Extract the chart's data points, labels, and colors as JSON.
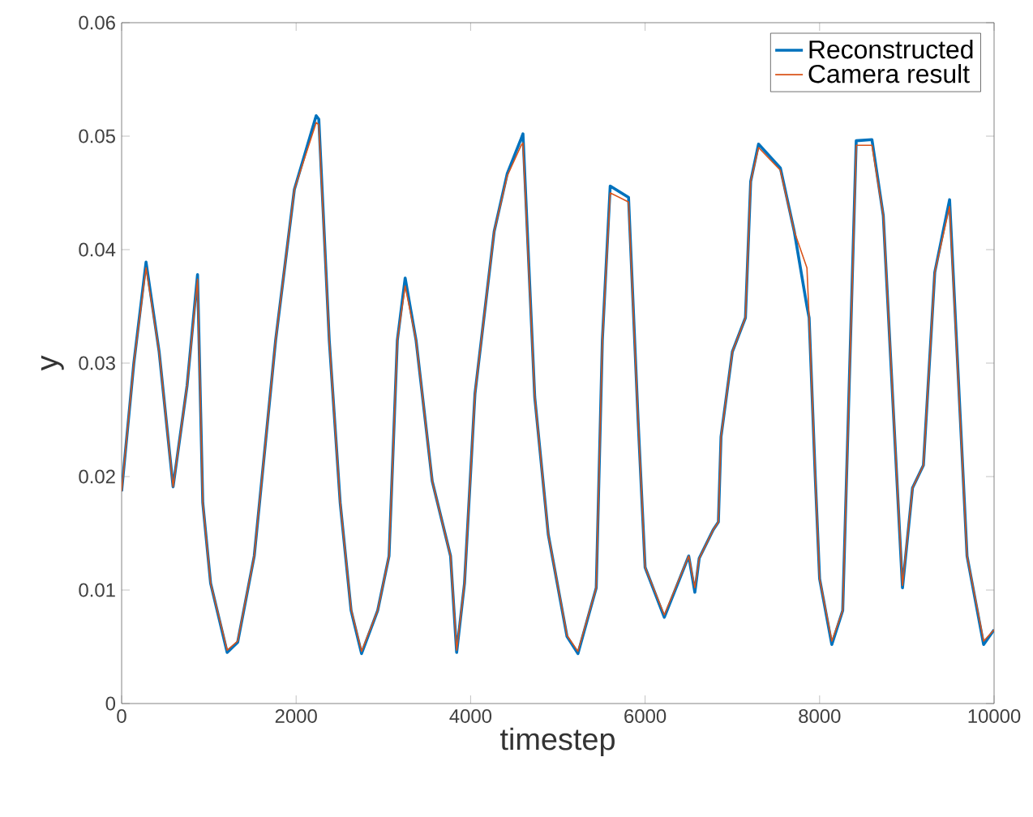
{
  "chart_data": {
    "type": "line",
    "xlabel": "timestep",
    "ylabel": "y",
    "xlim": [
      0,
      10000
    ],
    "ylim": [
      0,
      0.06
    ],
    "xticks": [
      0,
      2000,
      4000,
      6000,
      8000,
      10000
    ],
    "yticks": [
      0,
      0.01,
      0.02,
      0.03,
      0.04,
      0.05,
      0.06
    ],
    "legend": "top right",
    "grid": false,
    "marker": "none",
    "line_style": "solid",
    "x": [
      0,
      140,
      280,
      430,
      590,
      750,
      870,
      930,
      1020,
      1210,
      1330,
      1520,
      1765,
      1980,
      2230,
      2260,
      2380,
      2505,
      2630,
      2750,
      2935,
      3065,
      3160,
      3250,
      3375,
      3560,
      3770,
      3840,
      3930,
      4050,
      4270,
      4420,
      4580,
      4600,
      4735,
      4890,
      5105,
      5230,
      5440,
      5510,
      5600,
      5810,
      5920,
      6000,
      6220,
      6500,
      6570,
      6620,
      6780,
      6840,
      6870,
      7000,
      7150,
      7210,
      7300,
      7550,
      7710,
      7855,
      7880,
      7950,
      8000,
      8140,
      8265,
      8420,
      8600,
      8730,
      8950,
      9065,
      9190,
      9320,
      9490,
      9690,
      9880,
      10000
    ],
    "series": [
      {
        "name": "Reconstructed",
        "color": "#0072bd",
        "values": [
          0.0187,
          0.03,
          0.0389,
          0.031,
          0.0191,
          0.028,
          0.0378,
          0.0177,
          0.0106,
          0.0045,
          0.0054,
          0.013,
          0.032,
          0.0453,
          0.0518,
          0.0515,
          0.032,
          0.0177,
          0.0082,
          0.0044,
          0.0082,
          0.013,
          0.032,
          0.0375,
          0.032,
          0.0196,
          0.013,
          0.0045,
          0.0106,
          0.0273,
          0.0416,
          0.0467,
          0.0498,
          0.0502,
          0.027,
          0.0149,
          0.0059,
          0.0044,
          0.0102,
          0.032,
          0.0456,
          0.0446,
          0.0249,
          0.012,
          0.0076,
          0.013,
          0.0098,
          0.0128,
          0.0153,
          0.016,
          0.0235,
          0.031,
          0.034,
          0.046,
          0.0493,
          0.0472,
          0.0416,
          0.035,
          0.034,
          0.02,
          0.011,
          0.0052,
          0.0082,
          0.0496,
          0.0497,
          0.043,
          0.0102,
          0.019,
          0.021,
          0.038,
          0.0444,
          0.013,
          0.0052,
          0.0065
        ]
      },
      {
        "name": "Camera result",
        "color": "#d95319",
        "values": [
          0.0187,
          0.03,
          0.0384,
          0.031,
          0.0191,
          0.028,
          0.0374,
          0.0177,
          0.0106,
          0.0047,
          0.0055,
          0.013,
          0.032,
          0.0453,
          0.0512,
          0.051,
          0.032,
          0.0177,
          0.0083,
          0.0046,
          0.0082,
          0.013,
          0.032,
          0.0368,
          0.032,
          0.0196,
          0.013,
          0.0047,
          0.0106,
          0.0273,
          0.0416,
          0.0465,
          0.0492,
          0.0494,
          0.027,
          0.0149,
          0.006,
          0.0046,
          0.0102,
          0.032,
          0.045,
          0.0442,
          0.0249,
          0.012,
          0.0078,
          0.013,
          0.0102,
          0.0128,
          0.0153,
          0.016,
          0.0235,
          0.031,
          0.034,
          0.046,
          0.049,
          0.047,
          0.0416,
          0.0384,
          0.034,
          0.02,
          0.011,
          0.0055,
          0.0082,
          0.0492,
          0.0492,
          0.043,
          0.0104,
          0.019,
          0.021,
          0.038,
          0.0438,
          0.013,
          0.0055,
          0.0065
        ]
      }
    ]
  }
}
